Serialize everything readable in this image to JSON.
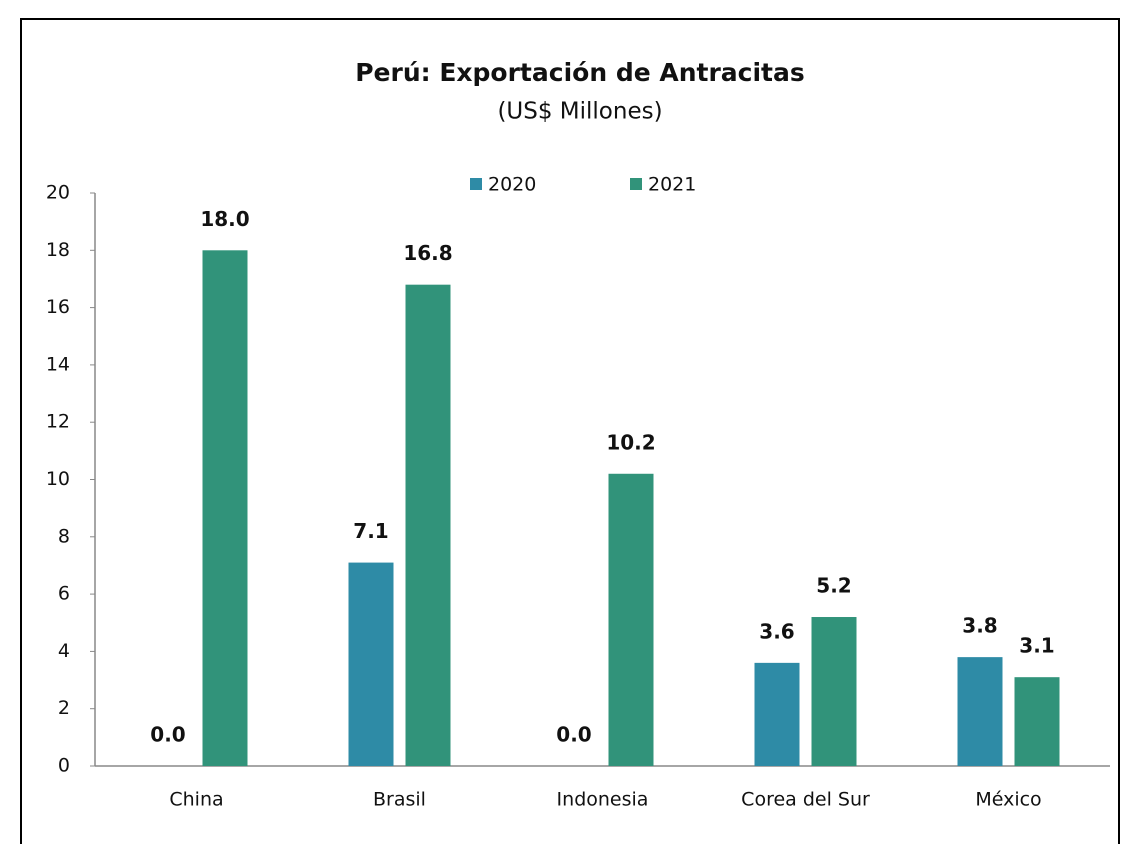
{
  "chart_data": {
    "type": "bar",
    "title": "Perú: Exportación de Antracitas",
    "subtitle": "(US$ Millones)",
    "categories": [
      "China",
      "Brasil",
      "Indonesia",
      "Corea del Sur",
      "México"
    ],
    "series": [
      {
        "name": "2020",
        "color": "#2e8ba6",
        "values": [
          0.0,
          7.1,
          0.0,
          3.6,
          3.8
        ],
        "value_labels": [
          "0.0",
          "7.1",
          "0.0",
          "3.6",
          "3.8"
        ]
      },
      {
        "name": "2021",
        "color": "#31937a",
        "values": [
          18.0,
          16.8,
          10.2,
          5.2,
          3.1
        ],
        "value_labels": [
          "18.0",
          "16.8",
          "10.2",
          "5.2",
          "3.1"
        ]
      }
    ],
    "ylim": [
      0,
      20
    ],
    "yticks": [
      0,
      2,
      4,
      6,
      8,
      10,
      12,
      14,
      16,
      18,
      20
    ],
    "grid": false,
    "legend": "top"
  }
}
